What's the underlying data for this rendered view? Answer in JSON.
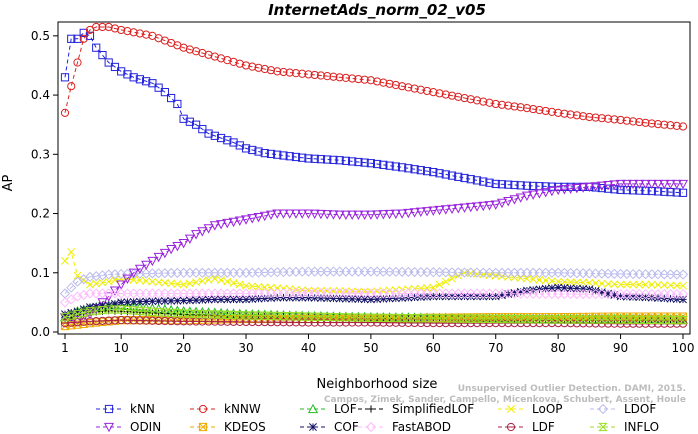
{
  "chart_data": {
    "type": "line",
    "title": "InternetAds_norm_02_v05",
    "xlabel": "Neighborhood size",
    "ylabel": "AP",
    "xlim": [
      1,
      100
    ],
    "ylim": [
      0,
      0.52
    ],
    "x_ticks": [
      1,
      10,
      20,
      30,
      40,
      50,
      60,
      70,
      80,
      90,
      100
    ],
    "y_ticks": [
      0.0,
      0.1,
      0.2,
      0.3,
      0.4,
      0.5
    ],
    "grid": false,
    "legend_position": "bottom",
    "watermark": [
      "Unsupervised Outlier Detection. DAMI, 2015.",
      "Campos, Zimek, Sander, Campello, Micenkova, Schubert, Assent, Houle"
    ],
    "series": [
      {
        "name": "kNN",
        "color": "#2222dd",
        "marker": "square",
        "points": [
          [
            1,
            0.43
          ],
          [
            2,
            0.495
          ],
          [
            3,
            0.495
          ],
          [
            4,
            0.505
          ],
          [
            5,
            0.5
          ],
          [
            6,
            0.48
          ],
          [
            8,
            0.455
          ],
          [
            10,
            0.44
          ],
          [
            12,
            0.43
          ],
          [
            15,
            0.42
          ],
          [
            17,
            0.405
          ],
          [
            19,
            0.385
          ],
          [
            20,
            0.36
          ],
          [
            22,
            0.35
          ],
          [
            24,
            0.335
          ],
          [
            28,
            0.32
          ],
          [
            30,
            0.31
          ],
          [
            33,
            0.302
          ],
          [
            36,
            0.298
          ],
          [
            40,
            0.293
          ],
          [
            45,
            0.29
          ],
          [
            50,
            0.285
          ],
          [
            55,
            0.278
          ],
          [
            60,
            0.27
          ],
          [
            65,
            0.26
          ],
          [
            70,
            0.25
          ],
          [
            75,
            0.247
          ],
          [
            80,
            0.245
          ],
          [
            85,
            0.245
          ],
          [
            90,
            0.24
          ],
          [
            95,
            0.238
          ],
          [
            100,
            0.235
          ]
        ]
      },
      {
        "name": "kNNW",
        "color": "#dd2222",
        "marker": "circle",
        "points": [
          [
            1,
            0.37
          ],
          [
            2,
            0.415
          ],
          [
            3,
            0.455
          ],
          [
            4,
            0.495
          ],
          [
            5,
            0.51
          ],
          [
            6,
            0.515
          ],
          [
            8,
            0.515
          ],
          [
            10,
            0.51
          ],
          [
            15,
            0.5
          ],
          [
            20,
            0.48
          ],
          [
            25,
            0.465
          ],
          [
            30,
            0.45
          ],
          [
            35,
            0.44
          ],
          [
            40,
            0.435
          ],
          [
            45,
            0.43
          ],
          [
            50,
            0.425
          ],
          [
            55,
            0.415
          ],
          [
            60,
            0.405
          ],
          [
            65,
            0.395
          ],
          [
            70,
            0.385
          ],
          [
            75,
            0.378
          ],
          [
            80,
            0.37
          ],
          [
            85,
            0.363
          ],
          [
            90,
            0.358
          ],
          [
            95,
            0.352
          ],
          [
            100,
            0.347
          ]
        ]
      },
      {
        "name": "LOF",
        "color": "#22bb22",
        "marker": "triangle-up",
        "points": [
          [
            1,
            0.025
          ],
          [
            3,
            0.035
          ],
          [
            5,
            0.04
          ],
          [
            8,
            0.045
          ],
          [
            10,
            0.045
          ],
          [
            15,
            0.04
          ],
          [
            20,
            0.035
          ],
          [
            30,
            0.03
          ],
          [
            40,
            0.027
          ],
          [
            50,
            0.025
          ],
          [
            60,
            0.024
          ],
          [
            70,
            0.023
          ],
          [
            80,
            0.022
          ],
          [
            90,
            0.022
          ],
          [
            100,
            0.021
          ]
        ]
      },
      {
        "name": "SimplifiedLOF",
        "color": "#000000",
        "marker": "plus",
        "points": [
          [
            1,
            0.02
          ],
          [
            3,
            0.028
          ],
          [
            5,
            0.033
          ],
          [
            8,
            0.036
          ],
          [
            10,
            0.035
          ],
          [
            15,
            0.032
          ],
          [
            20,
            0.03
          ],
          [
            30,
            0.027
          ],
          [
            40,
            0.025
          ],
          [
            50,
            0.023
          ],
          [
            60,
            0.022
          ],
          [
            70,
            0.021
          ],
          [
            80,
            0.02
          ],
          [
            90,
            0.02
          ],
          [
            100,
            0.02
          ]
        ]
      },
      {
        "name": "LoOP",
        "color": "#eeee00",
        "marker": "cross",
        "points": [
          [
            1,
            0.12
          ],
          [
            2,
            0.135
          ],
          [
            3,
            0.095
          ],
          [
            5,
            0.08
          ],
          [
            8,
            0.085
          ],
          [
            10,
            0.09
          ],
          [
            15,
            0.085
          ],
          [
            20,
            0.08
          ],
          [
            25,
            0.09
          ],
          [
            30,
            0.078
          ],
          [
            40,
            0.07
          ],
          [
            50,
            0.068
          ],
          [
            60,
            0.075
          ],
          [
            65,
            0.1
          ],
          [
            70,
            0.095
          ],
          [
            75,
            0.09
          ],
          [
            80,
            0.085
          ],
          [
            85,
            0.083
          ],
          [
            90,
            0.08
          ],
          [
            95,
            0.08
          ],
          [
            100,
            0.078
          ]
        ]
      },
      {
        "name": "LDOF",
        "color": "#bbbbee",
        "marker": "diamond",
        "points": [
          [
            1,
            0.065
          ],
          [
            3,
            0.085
          ],
          [
            5,
            0.093
          ],
          [
            8,
            0.097
          ],
          [
            10,
            0.098
          ],
          [
            20,
            0.1
          ],
          [
            30,
            0.1
          ],
          [
            40,
            0.102
          ],
          [
            50,
            0.102
          ],
          [
            60,
            0.101
          ],
          [
            70,
            0.1
          ],
          [
            80,
            0.1
          ],
          [
            90,
            0.098
          ],
          [
            100,
            0.097
          ]
        ]
      },
      {
        "name": "ODIN",
        "color": "#9922dd",
        "marker": "triangle-down",
        "points": [
          [
            1,
            0.025
          ],
          [
            3,
            0.02
          ],
          [
            5,
            0.03
          ],
          [
            8,
            0.06
          ],
          [
            10,
            0.08
          ],
          [
            12,
            0.1
          ],
          [
            15,
            0.12
          ],
          [
            18,
            0.14
          ],
          [
            20,
            0.15
          ],
          [
            22,
            0.165
          ],
          [
            25,
            0.18
          ],
          [
            30,
            0.19
          ],
          [
            35,
            0.2
          ],
          [
            40,
            0.2
          ],
          [
            45,
            0.198
          ],
          [
            50,
            0.198
          ],
          [
            55,
            0.2
          ],
          [
            60,
            0.205
          ],
          [
            65,
            0.21
          ],
          [
            70,
            0.215
          ],
          [
            75,
            0.23
          ],
          [
            80,
            0.24
          ],
          [
            85,
            0.245
          ],
          [
            90,
            0.25
          ],
          [
            95,
            0.25
          ],
          [
            100,
            0.25
          ]
        ]
      },
      {
        "name": "KDEOS",
        "color": "#eeaa00",
        "marker": "square-x",
        "points": [
          [
            1,
            0.01
          ],
          [
            5,
            0.015
          ],
          [
            10,
            0.02
          ],
          [
            20,
            0.02
          ],
          [
            30,
            0.022
          ],
          [
            40,
            0.022
          ],
          [
            50,
            0.022
          ],
          [
            60,
            0.024
          ],
          [
            70,
            0.025
          ],
          [
            80,
            0.025
          ],
          [
            90,
            0.026
          ],
          [
            100,
            0.026
          ]
        ]
      },
      {
        "name": "COF",
        "color": "#111166",
        "marker": "asterisk",
        "points": [
          [
            1,
            0.03
          ],
          [
            3,
            0.035
          ],
          [
            5,
            0.042
          ],
          [
            8,
            0.045
          ],
          [
            10,
            0.05
          ],
          [
            15,
            0.052
          ],
          [
            20,
            0.053
          ],
          [
            25,
            0.055
          ],
          [
            30,
            0.055
          ],
          [
            35,
            0.058
          ],
          [
            40,
            0.058
          ],
          [
            50,
            0.055
          ],
          [
            60,
            0.06
          ],
          [
            70,
            0.06
          ],
          [
            75,
            0.07
          ],
          [
            80,
            0.075
          ],
          [
            85,
            0.072
          ],
          [
            90,
            0.06
          ],
          [
            95,
            0.058
          ],
          [
            100,
            0.055
          ]
        ]
      },
      {
        "name": "FastABOD",
        "color": "#ffbbff",
        "marker": "diamond",
        "points": [
          [
            1,
            0.05
          ],
          [
            3,
            0.06
          ],
          [
            5,
            0.065
          ],
          [
            10,
            0.065
          ],
          [
            20,
            0.065
          ],
          [
            30,
            0.065
          ],
          [
            40,
            0.066
          ],
          [
            50,
            0.065
          ],
          [
            60,
            0.065
          ],
          [
            70,
            0.065
          ],
          [
            80,
            0.064
          ],
          [
            90,
            0.064
          ],
          [
            100,
            0.064
          ]
        ]
      },
      {
        "name": "LDF",
        "color": "#aa2244",
        "marker": "circle-dot",
        "points": [
          [
            1,
            0.015
          ],
          [
            5,
            0.018
          ],
          [
            10,
            0.02
          ],
          [
            20,
            0.018
          ],
          [
            30,
            0.017
          ],
          [
            40,
            0.016
          ],
          [
            50,
            0.016
          ],
          [
            60,
            0.015
          ],
          [
            70,
            0.015
          ],
          [
            80,
            0.015
          ],
          [
            90,
            0.014
          ],
          [
            100,
            0.014
          ]
        ]
      },
      {
        "name": "INFLO",
        "color": "#99dd22",
        "marker": "hourglass",
        "points": [
          [
            1,
            0.025
          ],
          [
            3,
            0.03
          ],
          [
            5,
            0.035
          ],
          [
            8,
            0.038
          ],
          [
            10,
            0.038
          ],
          [
            15,
            0.034
          ],
          [
            20,
            0.031
          ],
          [
            30,
            0.028
          ],
          [
            40,
            0.026
          ],
          [
            50,
            0.024
          ],
          [
            60,
            0.023
          ],
          [
            70,
            0.022
          ],
          [
            80,
            0.021
          ],
          [
            90,
            0.021
          ],
          [
            100,
            0.02
          ]
        ]
      }
    ]
  }
}
